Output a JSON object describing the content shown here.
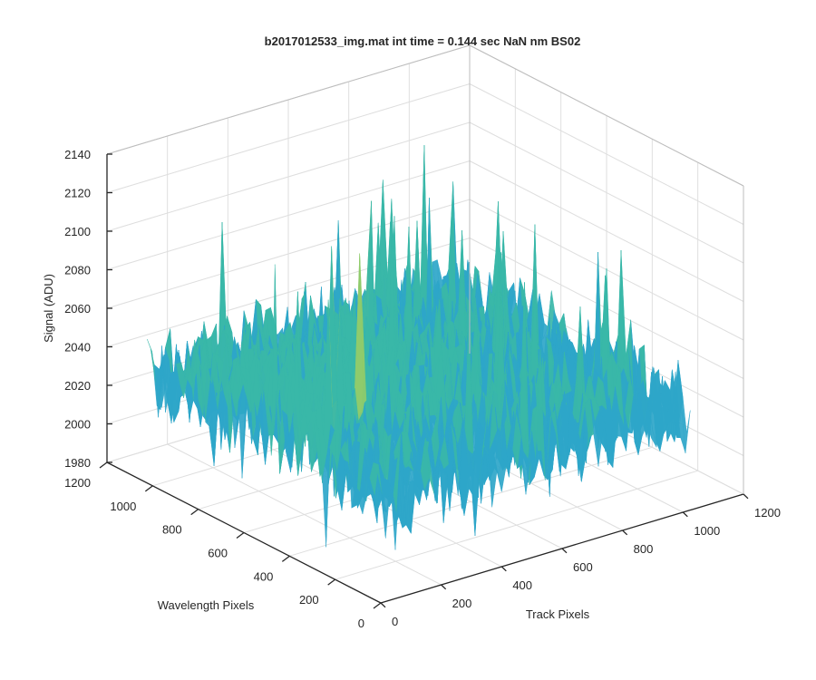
{
  "chart_data": {
    "type": "surface",
    "title": "b2017012533_img.mat int time = 0.144 sec  NaN nm BS02",
    "xlabel": "Track Pixels",
    "ylabel": "Wavelength Pixels",
    "zlabel": "Signal (ADU)",
    "xlim": [
      0,
      1200
    ],
    "ylim": [
      0,
      1200
    ],
    "zlim": [
      1980,
      2140
    ],
    "x_ticks": [
      0,
      200,
      400,
      600,
      800,
      1000,
      1200
    ],
    "y_ticks": [
      0,
      200,
      400,
      600,
      800,
      1000,
      1200
    ],
    "z_ticks": [
      1980,
      2000,
      2020,
      2040,
      2060,
      2080,
      2100,
      2120,
      2140
    ],
    "surface_extent": {
      "x": [
        0,
        1024
      ],
      "y": [
        0,
        1024
      ]
    },
    "signal_baseline": 2035,
    "signal_range": [
      1985,
      2125
    ],
    "colormap": [
      "#0072bd",
      "#2ea6c9",
      "#39b7a8",
      "#8fcb6b",
      "#d8c64a"
    ],
    "grid": true
  }
}
